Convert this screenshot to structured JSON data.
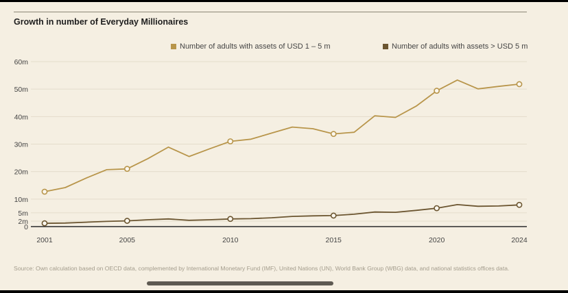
{
  "colors": {
    "background": "#f5efe2",
    "series_1_5m": "#b8954a",
    "series_gt5m": "#6b5530",
    "grid": "#e4dccb",
    "axis": "#2a2a2a",
    "text": "#444444"
  },
  "chart_data": {
    "type": "line",
    "title": "Growth in number of Everyday Millionaires",
    "xlabel": "",
    "ylabel": "",
    "x": [
      2001,
      2002,
      2003,
      2004,
      2005,
      2006,
      2007,
      2008,
      2009,
      2010,
      2011,
      2012,
      2013,
      2014,
      2015,
      2016,
      2017,
      2018,
      2019,
      2020,
      2021,
      2022,
      2023,
      2024
    ],
    "xlim": [
      2001,
      2024
    ],
    "ylim": [
      0,
      60
    ],
    "x_ticks": [
      2001,
      2005,
      2010,
      2015,
      2020,
      2024
    ],
    "x_tick_labels": [
      "2001",
      "2005",
      "2010",
      "2015",
      "2020",
      "2024"
    ],
    "y_ticks": [
      0,
      2,
      5,
      10,
      20,
      30,
      40,
      50,
      60
    ],
    "y_tick_labels": [
      "0",
      "2 m",
      "5 m",
      "10 m",
      "20 m",
      "30 m",
      "40 m",
      "50 m",
      "60 m"
    ],
    "grid": true,
    "legend_position": "top-right",
    "marker_years": [
      2001,
      2005,
      2010,
      2015,
      2020,
      2024
    ],
    "series": [
      {
        "name": "Number of adults with assets of USD 1 – 5 m",
        "key": "series_1_5m",
        "values": [
          12.7,
          14.2,
          17.6,
          20.7,
          21.0,
          24.7,
          28.9,
          25.5,
          28.3,
          31.0,
          31.8,
          34.0,
          36.2,
          35.6,
          33.7,
          34.3,
          40.3,
          39.7,
          43.8,
          49.4,
          53.3,
          50.1,
          51.0,
          51.8
        ]
      },
      {
        "name": "Number of adults with assets > USD 5 m",
        "key": "series_gt5m",
        "values": [
          1.2,
          1.3,
          1.6,
          1.9,
          2.1,
          2.5,
          2.8,
          2.3,
          2.5,
          2.8,
          2.9,
          3.2,
          3.7,
          3.9,
          4.0,
          4.5,
          5.3,
          5.2,
          5.9,
          6.7,
          8.0,
          7.4,
          7.5,
          7.9
        ]
      }
    ]
  },
  "source_note": "Source: Own calculation based on OECD data, complemented by International Monetary Fund (IMF), United Nations (UN), World Bank Group (WBG) data, and national statistics offices data."
}
